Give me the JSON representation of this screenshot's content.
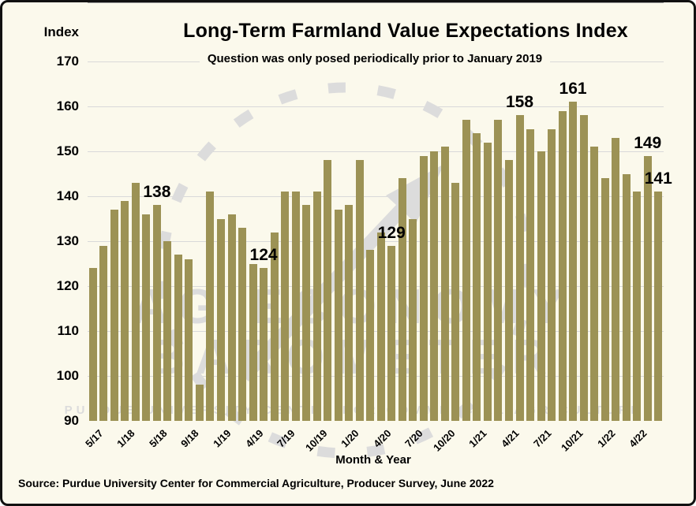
{
  "title": "Long-Term Farmland Value Expectations Index",
  "subtitle": "Question was only posed periodically prior to January 2019",
  "axis": {
    "y_label": "Index",
    "x_label": "Month & Year"
  },
  "source": "Source: Purdue University Center for Commercial Agriculture, Producer Survey, June 2022",
  "watermark": {
    "line1": "AG ECONOMY",
    "line2": "BAROMETER",
    "line3": "PURDUE UNIVERSITY CENTER FOR COMMERCIAL AGRICULTURE",
    "color": "#DCDCDC"
  },
  "colors": {
    "bar": "#9C9255",
    "background": "#FBF9EC",
    "gridline": "#D9D9D9",
    "text": "#000000"
  },
  "chart_data": {
    "type": "bar",
    "title": "Long-Term Farmland Value Expectations Index",
    "subtitle": "Question was only posed periodically prior to January 2019",
    "xlabel": "Month & Year",
    "ylabel": "Index",
    "ylim": [
      90,
      170
    ],
    "yticks": [
      90,
      100,
      110,
      120,
      130,
      140,
      150,
      160,
      170
    ],
    "grid": true,
    "legend": "none",
    "bar_color": "#9C9255",
    "note": "x ticks shown every 3rd bar; surveys were periodic before Jan 2019, monthly after",
    "bars": [
      {
        "tick": "5/17",
        "value": 124,
        "callout": ""
      },
      {
        "tick": "",
        "value": 129,
        "callout": ""
      },
      {
        "tick": "",
        "value": 137,
        "callout": ""
      },
      {
        "tick": "1/18",
        "value": 139,
        "callout": ""
      },
      {
        "tick": "",
        "value": 143,
        "callout": ""
      },
      {
        "tick": "",
        "value": 136,
        "callout": ""
      },
      {
        "tick": "5/18",
        "value": 138,
        "callout": "138"
      },
      {
        "tick": "",
        "value": 130,
        "callout": ""
      },
      {
        "tick": "",
        "value": 127,
        "callout": ""
      },
      {
        "tick": "9/18",
        "value": 126,
        "callout": ""
      },
      {
        "tick": "",
        "value": 98,
        "callout": ""
      },
      {
        "tick": "",
        "value": 141,
        "callout": ""
      },
      {
        "tick": "1/19",
        "value": 135,
        "callout": ""
      },
      {
        "tick": "",
        "value": 136,
        "callout": ""
      },
      {
        "tick": "",
        "value": 133,
        "callout": ""
      },
      {
        "tick": "4/19",
        "value": 125,
        "callout": ""
      },
      {
        "tick": "",
        "value": 124,
        "callout": "124"
      },
      {
        "tick": "",
        "value": 132,
        "callout": ""
      },
      {
        "tick": "7/19",
        "value": 141,
        "callout": ""
      },
      {
        "tick": "",
        "value": 141,
        "callout": ""
      },
      {
        "tick": "",
        "value": 138,
        "callout": ""
      },
      {
        "tick": "10/19",
        "value": 141,
        "callout": ""
      },
      {
        "tick": "",
        "value": 148,
        "callout": ""
      },
      {
        "tick": "",
        "value": 137,
        "callout": ""
      },
      {
        "tick": "1/20",
        "value": 138,
        "callout": ""
      },
      {
        "tick": "",
        "value": 148,
        "callout": ""
      },
      {
        "tick": "",
        "value": 128,
        "callout": ""
      },
      {
        "tick": "4/20",
        "value": 132,
        "callout": ""
      },
      {
        "tick": "",
        "value": 129,
        "callout": "129"
      },
      {
        "tick": "",
        "value": 144,
        "callout": ""
      },
      {
        "tick": "7/20",
        "value": 135,
        "callout": ""
      },
      {
        "tick": "",
        "value": 149,
        "callout": ""
      },
      {
        "tick": "",
        "value": 150,
        "callout": ""
      },
      {
        "tick": "10/20",
        "value": 151,
        "callout": ""
      },
      {
        "tick": "",
        "value": 143,
        "callout": ""
      },
      {
        "tick": "",
        "value": 157,
        "callout": ""
      },
      {
        "tick": "1/21",
        "value": 154,
        "callout": ""
      },
      {
        "tick": "",
        "value": 152,
        "callout": ""
      },
      {
        "tick": "",
        "value": 157,
        "callout": ""
      },
      {
        "tick": "4/21",
        "value": 148,
        "callout": ""
      },
      {
        "tick": "",
        "value": 158,
        "callout": "158"
      },
      {
        "tick": "",
        "value": 155,
        "callout": ""
      },
      {
        "tick": "7/21",
        "value": 150,
        "callout": ""
      },
      {
        "tick": "",
        "value": 155,
        "callout": ""
      },
      {
        "tick": "",
        "value": 159,
        "callout": ""
      },
      {
        "tick": "10/21",
        "value": 161,
        "callout": "161"
      },
      {
        "tick": "",
        "value": 158,
        "callout": ""
      },
      {
        "tick": "",
        "value": 151,
        "callout": ""
      },
      {
        "tick": "1/22",
        "value": 144,
        "callout": ""
      },
      {
        "tick": "",
        "value": 153,
        "callout": ""
      },
      {
        "tick": "",
        "value": 145,
        "callout": ""
      },
      {
        "tick": "4/22",
        "value": 141,
        "callout": ""
      },
      {
        "tick": "",
        "value": 149,
        "callout": "149"
      },
      {
        "tick": "",
        "value": 141,
        "callout": "141"
      }
    ]
  }
}
